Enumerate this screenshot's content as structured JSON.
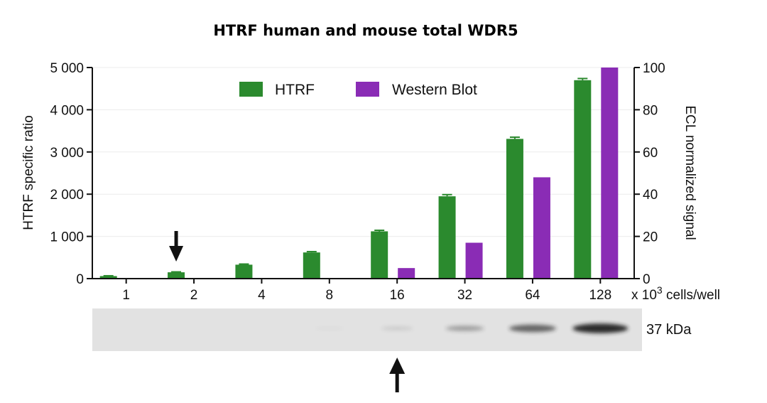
{
  "chart_data": {
    "type": "bar",
    "title": "HTRF human and mouse total WDR5",
    "categories": [
      "1",
      "2",
      "4",
      "8",
      "16",
      "32",
      "64",
      "128"
    ],
    "x_unit_prefix": "x 10",
    "x_unit_exponent": "3",
    "x_unit_suffix": " cells/well",
    "y_left": {
      "label": "HTRF specific ratio",
      "ylim": [
        0,
        5000
      ],
      "ticks": [
        0,
        1000,
        2000,
        3000,
        4000,
        5000
      ],
      "tick_labels": [
        "0",
        "1 000",
        "2 000",
        "3 000",
        "4 000",
        "5 000"
      ]
    },
    "y_right": {
      "label": "ECL normalized signal",
      "ylim": [
        0,
        100
      ],
      "ticks": [
        0,
        20,
        40,
        60,
        80,
        100
      ],
      "tick_labels": [
        "0",
        "20",
        "40",
        "60",
        "80",
        "100"
      ]
    },
    "series": [
      {
        "name": "HTRF",
        "axis": "left",
        "color": "#2b8a2e",
        "values": [
          60,
          150,
          330,
          620,
          1120,
          1950,
          3310,
          4700
        ],
        "errors": [
          8,
          10,
          15,
          20,
          25,
          40,
          40,
          40
        ]
      },
      {
        "name": "Western Blot",
        "axis": "right",
        "color": "#8a2cb5",
        "values": [
          0,
          0,
          0,
          0,
          5,
          17,
          48,
          100
        ]
      }
    ],
    "legend_position": "top",
    "grid": true,
    "arrow_category": "2",
    "blot": {
      "label": "37 kDa",
      "band_intensities": [
        0,
        0,
        0,
        0.03,
        0.12,
        0.35,
        0.65,
        0.95
      ]
    },
    "blot_arrow_category": "16"
  }
}
